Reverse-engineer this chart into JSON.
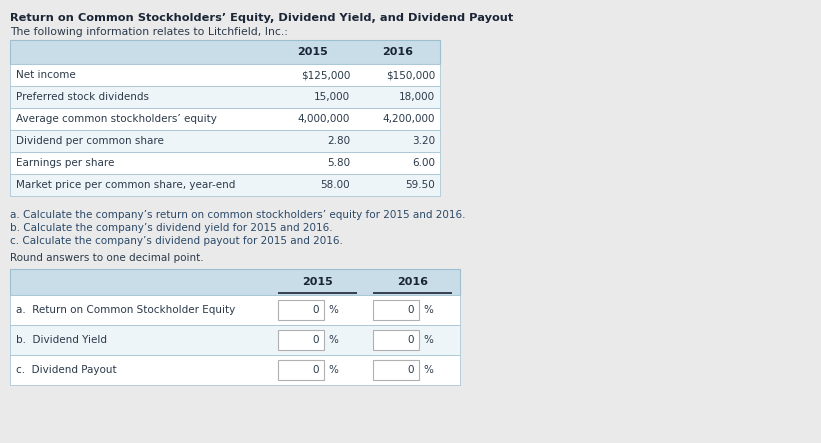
{
  "title": "Return on Common Stockholders’ Equity, Dividend Yield, and Dividend Payout",
  "subtitle": "The following information relates to Litchfield, Inc.:",
  "top_table_rows": [
    [
      "Net income",
      "$125,000",
      "$150,000"
    ],
    [
      "Preferred stock dividends",
      "15,000",
      "18,000"
    ],
    [
      "Average common stockholders’ equity",
      "4,000,000",
      "4,200,000"
    ],
    [
      "Dividend per common share",
      "2.80",
      "3.20"
    ],
    [
      "Earnings per share",
      "5.80",
      "6.00"
    ],
    [
      "Market price per common share, year-end",
      "58.00",
      "59.50"
    ]
  ],
  "questions": [
    "a. Calculate the company’s return on common stockholders’ equity for 2015 and 2016.",
    "b. Calculate the company’s dividend yield for 2015 and 2016.",
    "c. Calculate the company’s dividend payout for 2015 and 2016."
  ],
  "round_note": "Round answers to one decimal point.",
  "bottom_table_rows": [
    [
      "a.  Return on Common Stockholder Equity",
      "0",
      "0"
    ],
    [
      "b.  Dividend Yield",
      "0",
      "0"
    ],
    [
      "c.  Dividend Payout",
      "0",
      "0"
    ]
  ],
  "header_bg": "#c9dde8",
  "row_bg_alt": "#eef5f9",
  "row_bg_white": "#ffffff",
  "border_color": "#9dbfcf",
  "text_dark": "#2b3a4a",
  "bg_color": "#eaeaea",
  "title_color": "#1a2535",
  "question_color": "#2b4a6a"
}
